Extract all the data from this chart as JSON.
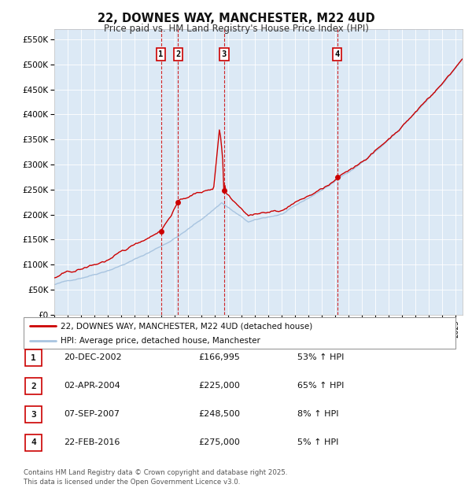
{
  "title": "22, DOWNES WAY, MANCHESTER, M22 4UD",
  "subtitle": "Price paid vs. HM Land Registry's House Price Index (HPI)",
  "background_color": "#ffffff",
  "plot_bg_color": "#dce9f5",
  "grid_color": "#ffffff",
  "hpi_line_color": "#a8c4e0",
  "price_line_color": "#cc0000",
  "ylim": [
    0,
    570000
  ],
  "yticks": [
    0,
    50000,
    100000,
    150000,
    200000,
    250000,
    300000,
    350000,
    400000,
    450000,
    500000,
    550000
  ],
  "ytick_labels": [
    "£0",
    "£50K",
    "£100K",
    "£150K",
    "£200K",
    "£250K",
    "£300K",
    "£350K",
    "£400K",
    "£450K",
    "£500K",
    "£550K"
  ],
  "x_start_year": 1995,
  "x_end_year": 2025,
  "sale_date_strs": [
    "20-DEC-2002",
    "02-APR-2004",
    "07-SEP-2007",
    "22-FEB-2016"
  ],
  "sale_prices": [
    166995,
    225000,
    248500,
    275000
  ],
  "sale_labels": [
    "1",
    "2",
    "3",
    "4"
  ],
  "sale_pcts": [
    "53%",
    "65%",
    "8%",
    "5%"
  ],
  "sale_price_strs": [
    "£166,995",
    "£225,000",
    "£248,500",
    "£275,000"
  ],
  "vline_color": "#cc0000",
  "marker_color": "#cc0000",
  "legend_line1": "22, DOWNES WAY, MANCHESTER, M22 4UD (detached house)",
  "legend_line2": "HPI: Average price, detached house, Manchester",
  "footer": "Contains HM Land Registry data © Crown copyright and database right 2025.\nThis data is licensed under the Open Government Licence v3.0."
}
